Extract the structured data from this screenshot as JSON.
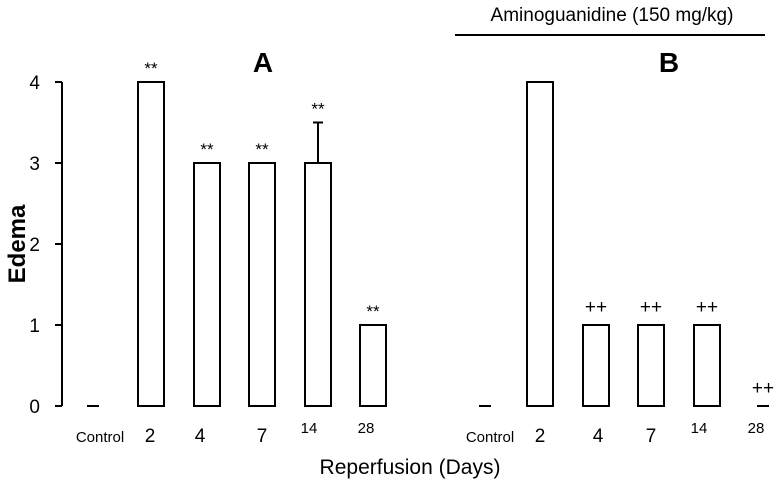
{
  "chart_data": {
    "type": "bar",
    "ylabel": "Edema",
    "xlabel": "Reperfusion (Days)",
    "ylim": [
      0,
      4
    ],
    "yticks": [
      "0",
      "1",
      "2",
      "3",
      "4"
    ],
    "grid": false,
    "treatment_label": "Aminoguanidine (150 mg/kg)",
    "panels": [
      {
        "label": "A",
        "categories": [
          "Control",
          "2",
          "4",
          "7",
          "14",
          "28"
        ],
        "values": [
          0,
          4,
          3,
          3,
          3,
          1
        ],
        "error_plus": [
          0,
          0,
          0,
          0,
          0.5,
          0
        ],
        "annotations": [
          "",
          "**",
          "**",
          "**",
          "**",
          "**"
        ]
      },
      {
        "label": "B",
        "categories": [
          "Control",
          "2",
          "4",
          "7",
          "14",
          "28"
        ],
        "values": [
          0,
          4,
          1,
          1,
          1,
          0
        ],
        "error_plus": [
          0,
          0,
          0,
          0,
          0,
          0
        ],
        "annotations": [
          "",
          "",
          "++",
          "++",
          "++",
          "++"
        ]
      }
    ]
  }
}
